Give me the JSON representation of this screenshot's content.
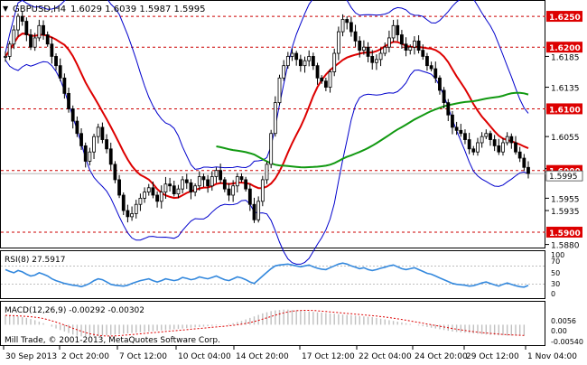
{
  "header": {
    "symbol_label": "GBPUSD,H4",
    "ohlc": "1.6029 1.6039 1.5987 1.5995",
    "dropdown_glyph": "▼"
  },
  "price_axis": {
    "ticks": [
      "1.6250",
      "1.6200",
      "1.6185",
      "1.6135",
      "1.6100",
      "1.6055",
      "1.6003",
      "1.6000",
      "1.5955",
      "1.5935",
      "1.5900",
      "1.5880"
    ],
    "highlighted": [
      "1.6250",
      "1.6200",
      "1.6100",
      "1.6000",
      "1.5900"
    ],
    "current": "1.5995"
  },
  "rsi": {
    "label": "RSI(8) 27.5917",
    "ticks": [
      "100",
      "70",
      "50",
      "30",
      "0"
    ]
  },
  "macd": {
    "label": "MACD(12,26,9) -0.00292 -0.00302",
    "ticks": [
      "0.0056",
      "0.00",
      "-0.00540"
    ]
  },
  "copyright": "Mill Trade, © 2001-2013, MetaQuotes Software Corp.",
  "time_axis": [
    "30 Sep 2013",
    "2 Oct 20:00",
    "7 Oct 12:00",
    "10 Oct 04:00",
    "14 Oct 20:00",
    "17 Oct 12:00",
    "22 Oct 04:00",
    "24 Oct 20:00",
    "29 Oct 12:00",
    "1 Nov 04:00"
  ],
  "colors": {
    "candles": "#000000",
    "bollinger": "#0000cc",
    "ma_red": "#dd0000",
    "ma_green": "#119911",
    "levels": "#cc0000",
    "rsi_line": "#3388dd",
    "macd_hist": "#c0c0c0",
    "macd_signal": "#dd0000",
    "price_tag": "#dd0000"
  },
  "chart_data": {
    "type": "candlestick",
    "symbol": "GBPUSD",
    "timeframe": "H4",
    "levels": [
      1.625,
      1.62,
      1.61,
      1.6,
      1.59
    ],
    "current_price": 1.5995,
    "price_range": [
      1.5875,
      1.6275
    ],
    "close": [
      1.6185,
      1.6205,
      1.6228,
      1.625,
      1.6242,
      1.622,
      1.62,
      1.6215,
      1.6235,
      1.622,
      1.6205,
      1.6185,
      1.617,
      1.615,
      1.6125,
      1.61,
      1.608,
      1.606,
      1.604,
      1.6015,
      1.603,
      1.6055,
      1.607,
      1.605,
      1.6035,
      1.601,
      1.5985,
      1.596,
      1.5935,
      1.5925,
      1.593,
      1.5945,
      1.5955,
      1.5965,
      1.5972,
      1.596,
      1.595,
      1.5965,
      1.5978,
      1.5975,
      1.5962,
      1.597,
      1.5985,
      1.598,
      1.5965,
      1.5975,
      1.599,
      1.5985,
      1.5975,
      1.599,
      1.6,
      1.5985,
      1.597,
      1.596,
      1.5975,
      1.599,
      1.5985,
      1.597,
      1.5945,
      1.592,
      1.595,
      1.5985,
      1.601,
      1.606,
      1.611,
      1.615,
      1.617,
      1.6185,
      1.619,
      1.618,
      1.617,
      1.6178,
      1.6185,
      1.617,
      1.615,
      1.6145,
      1.6135,
      1.616,
      1.619,
      1.6225,
      1.6245,
      1.624,
      1.6225,
      1.621,
      1.6195,
      1.62,
      1.6185,
      1.6175,
      1.618,
      1.619,
      1.62,
      1.6215,
      1.6235,
      1.622,
      1.6205,
      1.6195,
      1.62,
      1.621,
      1.6195,
      1.6185,
      1.617,
      1.6165,
      1.615,
      1.613,
      1.611,
      1.609,
      1.607,
      1.6065,
      1.606,
      1.605,
      1.6035,
      1.603,
      1.6045,
      1.6055,
      1.606,
      1.605,
      1.604,
      1.603,
      1.6045,
      1.6055,
      1.6045,
      1.603,
      1.602,
      1.6005,
      1.5995
    ],
    "rsi_range": [
      0,
      100
    ],
    "rsi": [
      62,
      58,
      55,
      60,
      57,
      52,
      48,
      50,
      55,
      52,
      48,
      42,
      38,
      35,
      32,
      30,
      28,
      27,
      25,
      28,
      32,
      38,
      42,
      40,
      35,
      30,
      28,
      27,
      26,
      28,
      32,
      35,
      38,
      40,
      42,
      38,
      35,
      38,
      42,
      40,
      38,
      40,
      45,
      43,
      40,
      42,
      46,
      44,
      42,
      45,
      48,
      44,
      40,
      38,
      42,
      46,
      44,
      40,
      35,
      32,
      40,
      48,
      56,
      64,
      70,
      72,
      73,
      74,
      72,
      70,
      68,
      70,
      72,
      68,
      65,
      63,
      62,
      66,
      70,
      74,
      76,
      74,
      70,
      67,
      64,
      66,
      62,
      60,
      62,
      65,
      67,
      70,
      72,
      68,
      64,
      62,
      64,
      66,
      62,
      58,
      54,
      52,
      48,
      44,
      40,
      36,
      32,
      30,
      29,
      28,
      26,
      27,
      30,
      33,
      35,
      32,
      29,
      26,
      30,
      33,
      30,
      27,
      25,
      24,
      27.59
    ],
    "macd_range": [
      -0.0054,
      0.0056
    ],
    "macd": [
      0.0025,
      0.0024,
      0.0023,
      0.0022,
      0.002,
      0.0018,
      0.0015,
      0.0012,
      0.0008,
      0.0004,
      0.0,
      -0.0005,
      -0.001,
      -0.0014,
      -0.0018,
      -0.0022,
      -0.0026,
      -0.0029,
      -0.0031,
      -0.0032,
      -0.0032,
      -0.0031,
      -0.003,
      -0.0029,
      -0.0028,
      -0.0027,
      -0.0026,
      -0.0025,
      -0.0024,
      -0.0023,
      -0.0022,
      -0.0021,
      -0.002,
      -0.0019,
      -0.0018,
      -0.0017,
      -0.0016,
      -0.0015,
      -0.0014,
      -0.0013,
      -0.0012,
      -0.0011,
      -0.001,
      -0.0009,
      -0.0008,
      -0.0007,
      -0.0006,
      -0.0005,
      -0.0004,
      -0.0003,
      -0.0002,
      -0.0001,
      0.0,
      0.0002,
      0.0004,
      0.0007,
      0.001,
      0.0014,
      0.0018,
      0.0022,
      0.0026,
      0.003,
      0.0033,
      0.0036,
      0.0038,
      0.0039,
      0.004,
      0.004,
      0.0039,
      0.0038,
      0.0037,
      0.0036,
      0.0035,
      0.0034,
      0.0033,
      0.0032,
      0.0031,
      0.003,
      0.0029,
      0.0028,
      0.0027,
      0.0026,
      0.0025,
      0.0024,
      0.0023,
      0.0022,
      0.0021,
      0.002,
      0.0018,
      0.0016,
      0.0014,
      0.0012,
      0.001,
      0.0008,
      0.0006,
      0.0004,
      0.0002,
      0.0,
      -0.0002,
      -0.0004,
      -0.0006,
      -0.0008,
      -0.001,
      -0.0012,
      -0.0014,
      -0.0016,
      -0.0018,
      -0.0019,
      -0.002,
      -0.0021,
      -0.0022,
      -0.0023,
      -0.0024,
      -0.0025,
      -0.0026,
      -0.0027,
      -0.0027,
      -0.0028,
      -0.0028,
      -0.0029,
      -0.0029,
      -0.0029,
      -0.0029,
      -0.00292
    ]
  }
}
